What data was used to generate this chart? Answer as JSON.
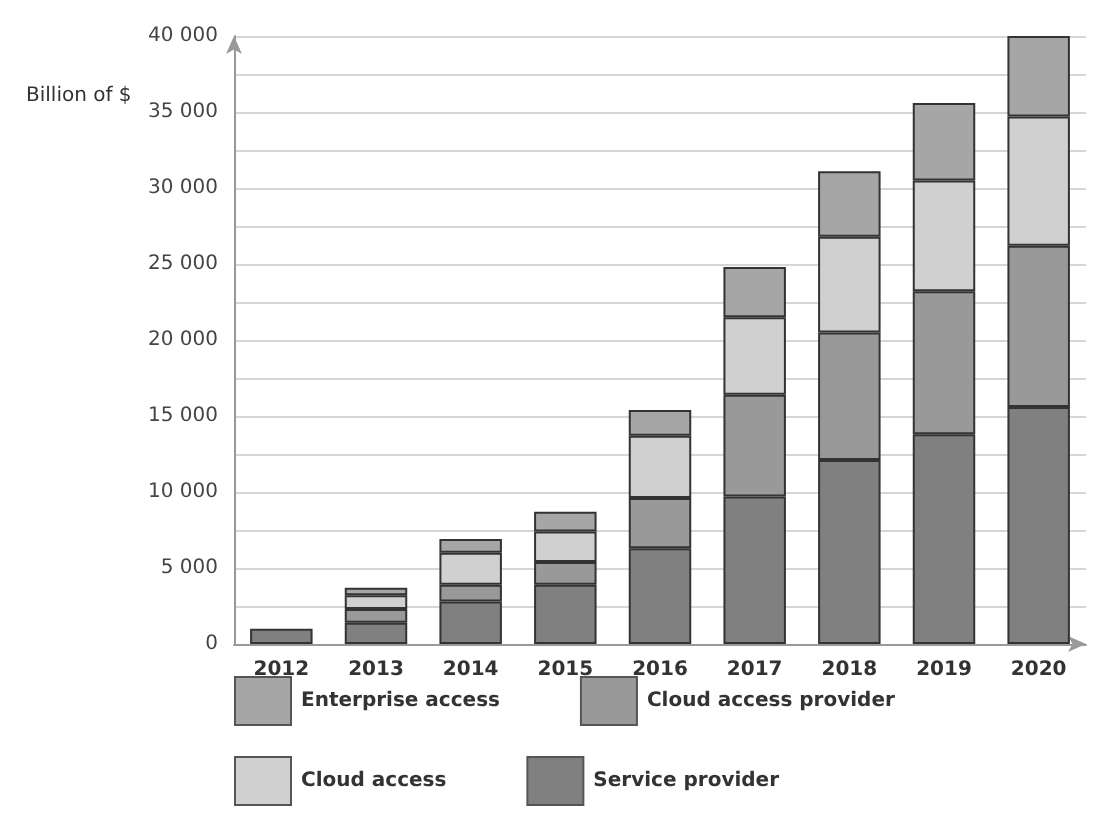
{
  "chart_data": {
    "type": "bar",
    "stacked": true,
    "ylabel": "Billion of $",
    "categories": [
      "2012",
      "2013",
      "2014",
      "2015",
      "2016",
      "2017",
      "2018",
      "2019",
      "2020"
    ],
    "series": [
      {
        "name": "Service provider",
        "color": "#808080",
        "values": [
          1000,
          1400,
          2800,
          3900,
          6300,
          9700,
          12100,
          13800,
          15600
        ]
      },
      {
        "name": "Cloud access provider",
        "color": "#999999",
        "values": [
          null,
          900,
          1100,
          1500,
          3300,
          6700,
          8400,
          9400,
          10600
        ]
      },
      {
        "name": "Cloud access",
        "color": "#d0d0d0",
        "values": [
          null,
          900,
          2100,
          2000,
          4100,
          5100,
          6300,
          7300,
          8500
        ]
      },
      {
        "name": "Enterprise access",
        "color": "#a6a6a6",
        "values": [
          null,
          500,
          900,
          1300,
          1700,
          3300,
          4300,
          5100,
          5300
        ]
      }
    ],
    "ylim": [
      0,
      40000
    ],
    "yticks": [
      {
        "value": 0,
        "label": "0"
      },
      {
        "value": 2500,
        "label": null
      },
      {
        "value": 5000,
        "label": "5 000"
      },
      {
        "value": 7500,
        "label": null
      },
      {
        "value": 10000,
        "label": "10 000"
      },
      {
        "value": 12500,
        "label": null
      },
      {
        "value": 15000,
        "label": "15 000"
      },
      {
        "value": 17500,
        "label": null
      },
      {
        "value": 20000,
        "label": "20 000"
      },
      {
        "value": 22500,
        "label": null
      },
      {
        "value": 25000,
        "label": "25 000"
      },
      {
        "value": 27500,
        "label": null
      },
      {
        "value": 30000,
        "label": "30 000"
      },
      {
        "value": 32500,
        "label": null
      },
      {
        "value": 35000,
        "label": "35 000"
      },
      {
        "value": 37500,
        "label": null
      },
      {
        "value": 40000,
        "label": "40 000"
      }
    ],
    "grid": "y",
    "legend": "bottom"
  }
}
